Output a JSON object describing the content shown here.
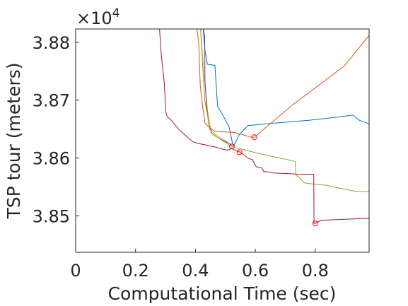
{
  "chart_data": {
    "type": "line",
    "xlabel": "Computational Time (sec)",
    "ylabel": "TSP tour (meters)",
    "xlim": [
      0,
      0.98
    ],
    "ylim": [
      38437,
      38823
    ],
    "x_ticks": [
      0,
      0.2,
      0.4,
      0.6,
      0.8
    ],
    "x_tick_labels": [
      "0",
      "0.2",
      "0.4",
      "0.6",
      "0.8"
    ],
    "y_ticks": [
      38500,
      38600,
      38700,
      38800
    ],
    "y_tick_labels": [
      "3.85",
      "3.86",
      "3.87",
      "3.88"
    ],
    "y_exponent": {
      "base": "10",
      "power": "4"
    },
    "grid": false,
    "box": true,
    "series": [
      {
        "color": "#0072BD",
        "points": [
          [
            0.426,
            38830
          ],
          [
            0.432,
            38785
          ],
          [
            0.44,
            38762
          ],
          [
            0.465,
            38760
          ],
          [
            0.474,
            38690
          ],
          [
            0.475,
            38689
          ],
          [
            0.5,
            38666
          ],
          [
            0.513,
            38653
          ],
          [
            0.526,
            38620
          ],
          [
            0.538,
            38631
          ],
          [
            0.546,
            38640
          ],
          [
            0.575,
            38656
          ],
          [
            0.659,
            38660
          ],
          [
            0.778,
            38665
          ],
          [
            0.83,
            38668
          ],
          [
            0.925,
            38674
          ],
          [
            0.948,
            38665
          ],
          [
            0.98,
            38659
          ]
        ],
        "marker": null
      },
      {
        "color": "#D95319",
        "points": [
          [
            0.405,
            38830
          ],
          [
            0.411,
            38800
          ],
          [
            0.416,
            38725
          ],
          [
            0.424,
            38689
          ],
          [
            0.432,
            38660
          ],
          [
            0.442,
            38655
          ],
          [
            0.465,
            38646
          ],
          [
            0.53,
            38644
          ],
          [
            0.56,
            38640
          ],
          [
            0.584,
            38636
          ],
          [
            0.597,
            38636
          ],
          [
            0.72,
            38690
          ],
          [
            0.897,
            38759
          ],
          [
            0.98,
            38812
          ]
        ],
        "marker": [
          0.597,
          38636
        ]
      },
      {
        "color": "#EDB120",
        "points": [
          [
            0.418,
            38830
          ],
          [
            0.422,
            38790
          ],
          [
            0.43,
            38740
          ],
          [
            0.441,
            38680
          ],
          [
            0.449,
            38655
          ],
          [
            0.457,
            38645
          ],
          [
            0.48,
            38636
          ],
          [
            0.5,
            38630
          ],
          [
            0.522,
            38621
          ]
        ],
        "marker": null
      },
      {
        "color": "#7E2F8E",
        "points": [
          [
            0.427,
            38830
          ],
          [
            0.431,
            38810
          ],
          [
            0.432,
            38732
          ],
          [
            0.437,
            38690
          ],
          [
            0.445,
            38658
          ],
          [
            0.454,
            38643
          ],
          [
            0.478,
            38634
          ],
          [
            0.513,
            38625
          ],
          [
            0.522,
            38620
          ]
        ],
        "marker": [
          0.522,
          38620
        ]
      },
      {
        "color": "#77AC30",
        "points": [
          [
            0.417,
            38830
          ],
          [
            0.424,
            38760
          ],
          [
            0.431,
            38700
          ],
          [
            0.44,
            38676
          ],
          [
            0.447,
            38650
          ],
          [
            0.46,
            38640
          ],
          [
            0.49,
            38630
          ],
          [
            0.513,
            38622
          ],
          [
            0.532,
            38618
          ],
          [
            0.55,
            38616
          ],
          [
            0.625,
            38606
          ],
          [
            0.7,
            38598
          ],
          [
            0.733,
            38594
          ],
          [
            0.736,
            38570
          ],
          [
            0.748,
            38566
          ],
          [
            0.764,
            38557
          ],
          [
            0.793,
            38555
          ],
          [
            0.835,
            38553
          ],
          [
            0.87,
            38549
          ],
          [
            0.938,
            38542
          ],
          [
            0.955,
            38542
          ],
          [
            0.98,
            38542
          ]
        ],
        "marker": null
      },
      {
        "color": "#A2142F",
        "points": [
          [
            0.28,
            38830
          ],
          [
            0.286,
            38778
          ],
          [
            0.296,
            38730
          ],
          [
            0.301,
            38680
          ],
          [
            0.305,
            38672
          ],
          [
            0.32,
            38665
          ],
          [
            0.347,
            38648
          ],
          [
            0.391,
            38628
          ],
          [
            0.411,
            38625
          ],
          [
            0.43,
            38623
          ],
          [
            0.466,
            38619
          ],
          [
            0.5,
            38614
          ],
          [
            0.512,
            38614
          ],
          [
            0.521,
            38617
          ],
          [
            0.53,
            38614
          ],
          [
            0.55,
            38610
          ],
          [
            0.575,
            38600
          ],
          [
            0.59,
            38597
          ],
          [
            0.603,
            38585
          ],
          [
            0.612,
            38583
          ],
          [
            0.621,
            38583
          ],
          [
            0.628,
            38577
          ],
          [
            0.66,
            38574
          ],
          [
            0.715,
            38573
          ],
          [
            0.74,
            38572
          ],
          [
            0.795,
            38572
          ],
          [
            0.796,
            38487
          ],
          [
            0.8,
            38487
          ],
          [
            0.819,
            38492
          ],
          [
            0.843,
            38493
          ],
          [
            0.9,
            38494
          ],
          [
            0.98,
            38496
          ]
        ],
        "marker": [
          0.547,
          38610
        ]
      },
      {
        "color": "#A2142F",
        "points": [],
        "marker": [
          0.8,
          38487
        ]
      }
    ]
  }
}
